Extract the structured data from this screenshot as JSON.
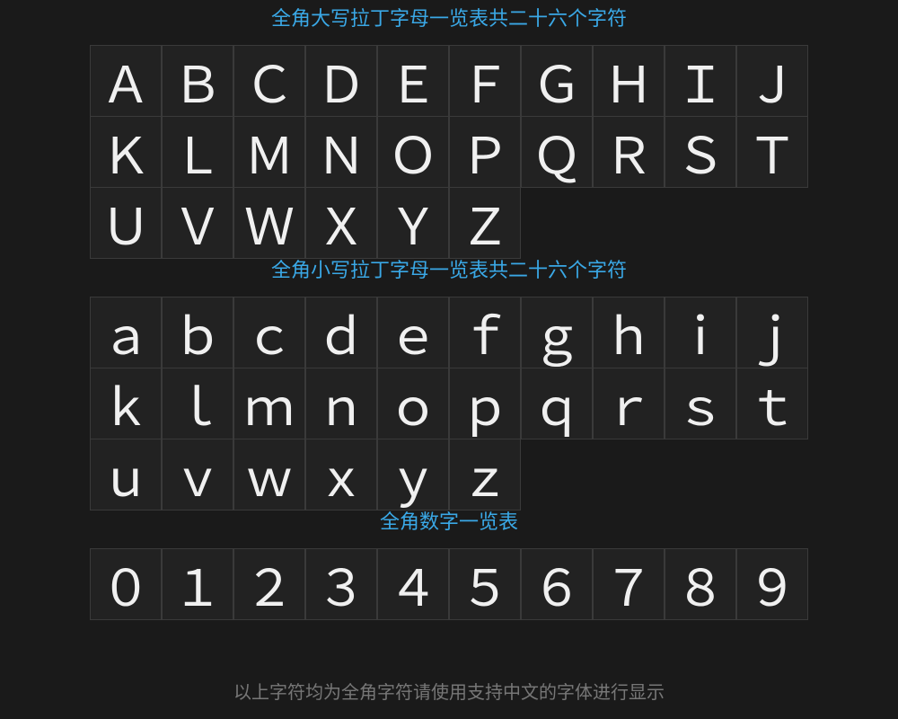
{
  "sections": [
    {
      "title": "全角大写拉丁字母一览表共二十六个字符",
      "chars": [
        "Ａ",
        "Ｂ",
        "Ｃ",
        "Ｄ",
        "Ｅ",
        "Ｆ",
        "Ｇ",
        "Ｈ",
        "Ｉ",
        "Ｊ",
        "Ｋ",
        "Ｌ",
        "Ｍ",
        "Ｎ",
        "Ｏ",
        "Ｐ",
        "Ｑ",
        "Ｒ",
        "Ｓ",
        "Ｔ",
        "Ｕ",
        "Ｖ",
        "Ｗ",
        "Ｘ",
        "Ｙ",
        "Ｚ"
      ]
    },
    {
      "title": "全角小写拉丁字母一览表共二十六个字符",
      "chars": [
        "ａ",
        "ｂ",
        "ｃ",
        "ｄ",
        "ｅ",
        "ｆ",
        "ｇ",
        "ｈ",
        "ｉ",
        "ｊ",
        "ｋ",
        "ｌ",
        "ｍ",
        "ｎ",
        "ｏ",
        "ｐ",
        "ｑ",
        "ｒ",
        "ｓ",
        "ｔ",
        "ｕ",
        "ｖ",
        "ｗ",
        "ｘ",
        "ｙ",
        "ｚ"
      ]
    },
    {
      "title": "全角数字一览表",
      "chars": [
        "０",
        "１",
        "２",
        "３",
        "４",
        "５",
        "６",
        "７",
        "８",
        "９"
      ]
    }
  ],
  "footer": "以上字符均为全角字符请使用支持中文的字体进行显示",
  "colors": {
    "title": "#3aa8e6",
    "background": "#1a1a1a",
    "cell": "#222222",
    "border": "#3a3a3a"
  }
}
